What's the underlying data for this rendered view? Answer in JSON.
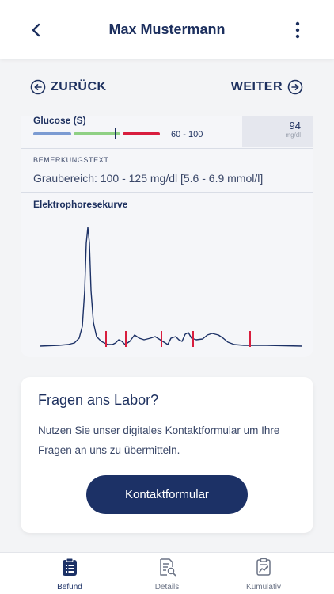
{
  "header": {
    "title": "Max Mustermann"
  },
  "nav": {
    "prev_label": "ZURÜCK",
    "next_label": "WEITER"
  },
  "result": {
    "test_name": "Glucose (S)",
    "reference_range": "60 - 100",
    "value": "94",
    "unit": "mg/dl",
    "range_colors": {
      "low": "#7b9bd2",
      "normal": "#8fd084",
      "high": "#d81e3e"
    },
    "marker_position_fraction": 0.65
  },
  "remark": {
    "heading": "BEMERKUNGSTEXT",
    "text": "Graubereich: 100 - 125 mg/dl [5.6 - 6.9 mmol/l]"
  },
  "electrophoresis": {
    "heading": "Elektrophoresekurve",
    "curve_color": "#1c3166",
    "divider_color": "#d81e3e"
  },
  "contact": {
    "heading": "Fragen ans Labor?",
    "body": "Nutzen Sie unser digitales Kontaktformular um Ihre Fragen an uns zu übermitteln.",
    "button_label": "Kontaktformular"
  },
  "tabs": [
    {
      "label": "Befund",
      "icon": "clipboard-list-icon",
      "active": true
    },
    {
      "label": "Details",
      "icon": "document-search-icon",
      "active": false
    },
    {
      "label": "Kumulativ",
      "icon": "clipboard-chart-icon",
      "active": false
    }
  ]
}
